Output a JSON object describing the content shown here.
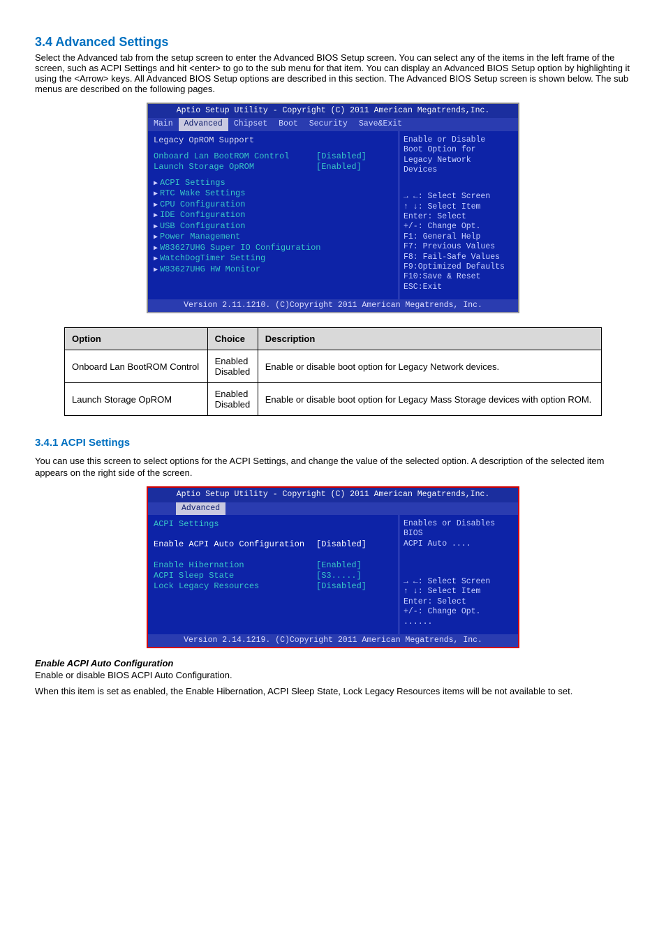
{
  "heading1": "3.4 Advanced Settings",
  "intro1": "Select the Advanced tab from the setup screen to enter the Advanced BIOS Setup screen. You can select any of the items in the left frame of the screen, such as ACPI Settings and hit <enter> to go to the sub menu for that item. You can display an Advanced BIOS Setup option by highlighting it using the <Arrow> keys. All Advanced BIOS Setup options are described in this section. The Advanced BIOS Setup screen is shown below. The sub menus are described on the following pages.",
  "bios1": {
    "title": "Aptio Setup Utility - Copyright (C) 2011 American Megatrends,Inc.",
    "tabs": [
      "Main",
      "Advanced",
      "Chipset",
      "Boot",
      "Security",
      "Save&Exit"
    ],
    "active_tab_index": 1,
    "section_head": "Legacy OpROM Support",
    "rows": [
      {
        "label": "Onboard Lan BootROM Control",
        "value": "[Disabled]",
        "cls": "cyan"
      },
      {
        "label": "Launch Storage OpROM",
        "value": "[Enabled]",
        "cls": "cyan"
      }
    ],
    "subs": [
      "ACPI Settings",
      "RTC Wake Settings",
      "CPU Configuration",
      "IDE Configuration",
      "USB Configuration",
      "Power Management",
      "W83627UHG Super IO Configuration",
      "WatchDogTimer Setting",
      "W83627UHG HW Monitor"
    ],
    "help_top": [
      "Enable or Disable",
      "Boot Option for",
      "Legacy  Network",
      "Devices"
    ],
    "keys": [
      "→ ←:  Select Screen",
      "↑ ↓:  Select Item",
      "Enter: Select",
      "+/-:  Change Opt.",
      "F1: General Help",
      "F7: Previous Values",
      "F8: Fail-Safe Values",
      "F9:Optimized Defaults",
      "F10:Save & Reset",
      "ESC:Exit"
    ],
    "footer": "Version 2.11.1210. (C)Copyright 2011 American Megatrends, Inc."
  },
  "table1": {
    "headers": [
      "Option",
      "Choice",
      "Description"
    ],
    "rows": [
      [
        "Onboard Lan BootROM Control",
        "Enabled\nDisabled",
        "Enable or disable boot option for Legacy Network devices."
      ],
      [
        "Launch Storage OpROM",
        "Enabled\nDisabled",
        "Enable or disable boot option for Legacy Mass Storage devices with option ROM."
      ]
    ]
  },
  "heading2": "3.4.1 ACPI Settings",
  "intro2": "You can use this screen to select options for the ACPI Settings, and change the value of the selected option. A description of the selected item appears on the right side of the screen.",
  "bios2": {
    "title": "Aptio Setup Utility - Copyright (C) 2011 American Megatrends,Inc.",
    "tab": "Advanced",
    "section_head": "ACPI Settings",
    "rows": [
      {
        "label": "Enable ACPI Auto Configuration",
        "value": "[Disabled]",
        "active": true
      },
      {
        "label": "",
        "value": ""
      },
      {
        "label": "Enable Hibernation",
        "value": "[Enabled]"
      },
      {
        "label": "ACPI Sleep State",
        "value": "[S3.....]"
      },
      {
        "label": "Lock Legacy Resources",
        "value": "[Disabled]"
      }
    ],
    "help_top": [
      "Enables or Disables BIOS",
      "ACPI Auto ...."
    ],
    "keys": [
      "→ ←:  Select Screen",
      "↑ ↓:  Select Item",
      "Enter: Select",
      "+/-:  Change Opt.",
      "......"
    ],
    "footer": "Version 2.14.1219. (C)Copyright 2011 American Megatrends, Inc."
  },
  "item1_title": "Enable ACPI Auto Configuration",
  "item1_body1": "Enable or disable BIOS ACPI Auto Configuration.",
  "item1_body2": "When this item is set as enabled, the Enable Hibernation, ACPI Sleep State, Lock Legacy Resources items will be not available to set."
}
